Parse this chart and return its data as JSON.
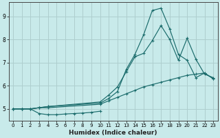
{
  "xlabel": "Humidex (Indice chaleur)",
  "xlim": [
    -0.5,
    23.5
  ],
  "ylim": [
    4.5,
    9.6
  ],
  "yticks": [
    5,
    6,
    7,
    8,
    9
  ],
  "xticks": [
    0,
    1,
    2,
    3,
    4,
    5,
    6,
    7,
    8,
    9,
    10,
    11,
    12,
    13,
    14,
    15,
    16,
    17,
    18,
    19,
    20,
    21,
    22,
    23
  ],
  "bg_color": "#c8eaea",
  "grid_color": "#aecece",
  "line_color": "#1a6b6b",
  "lines": [
    {
      "x": [
        0,
        1,
        2,
        3,
        4,
        5,
        6,
        7,
        8,
        9,
        10
      ],
      "y": [
        5.0,
        5.0,
        5.0,
        4.8,
        4.75,
        4.75,
        4.78,
        4.8,
        4.82,
        4.85,
        4.9
      ]
    },
    {
      "x": [
        0,
        1,
        2,
        3,
        4,
        10,
        11,
        12,
        13,
        14,
        15,
        16,
        17,
        18,
        19,
        20,
        21,
        22,
        23
      ],
      "y": [
        5.0,
        5.0,
        5.0,
        5.05,
        5.05,
        5.2,
        5.35,
        5.5,
        5.65,
        5.8,
        5.95,
        6.05,
        6.15,
        6.25,
        6.35,
        6.45,
        6.5,
        6.55,
        6.3
      ]
    },
    {
      "x": [
        0,
        1,
        2,
        3,
        4,
        10,
        11,
        12,
        13,
        14,
        15,
        16,
        17,
        18,
        19,
        20,
        21,
        22,
        23
      ],
      "y": [
        5.0,
        5.0,
        5.0,
        5.05,
        5.1,
        5.3,
        5.6,
        5.95,
        6.6,
        7.25,
        7.4,
        7.95,
        8.6,
        8.0,
        7.1,
        8.05,
        7.15,
        6.5,
        6.35
      ]
    },
    {
      "x": [
        0,
        1,
        2,
        3,
        4,
        10,
        11,
        12,
        13,
        14,
        15,
        16,
        17,
        18,
        19,
        20,
        21,
        22,
        23
      ],
      "y": [
        5.0,
        5.0,
        5.0,
        5.05,
        5.1,
        5.25,
        5.45,
        5.75,
        6.7,
        7.35,
        8.2,
        9.25,
        9.35,
        8.45,
        7.35,
        7.1,
        6.35,
        6.55,
        6.3
      ]
    }
  ]
}
